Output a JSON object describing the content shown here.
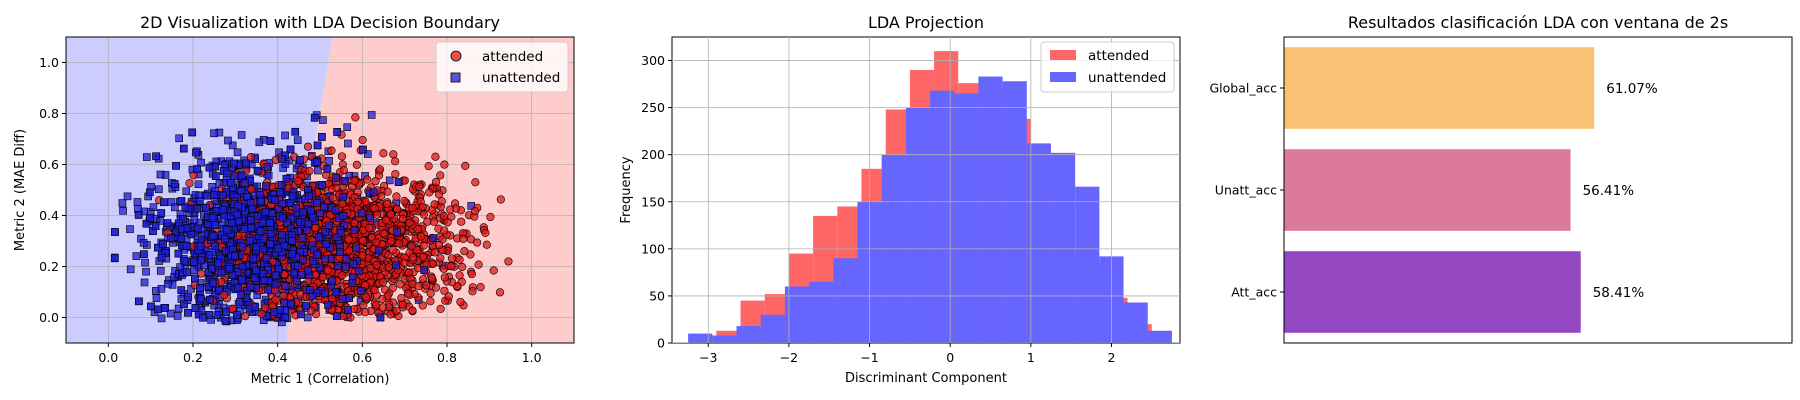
{
  "chart_data": [
    {
      "type": "scatter",
      "title": "2D Visualization with LDA Decision Boundary",
      "xlabel": "Metric 1 (Correlation)",
      "ylabel": "Metric 2 (MAE Diff)",
      "xlim": [
        -0.1,
        1.1
      ],
      "ylim": [
        -0.1,
        1.1
      ],
      "xticks": [
        "0.0",
        "0.2",
        "0.4",
        "0.6",
        "0.8",
        "1.0"
      ],
      "yticks": [
        "0.0",
        "0.2",
        "0.4",
        "0.6",
        "0.8",
        "1.0"
      ],
      "grid": true,
      "legend_position": "top-right",
      "decision_boundary": [
        [
          0.42,
          -0.1
        ],
        [
          0.48,
          0.6
        ],
        [
          0.53,
          1.1
        ]
      ],
      "regions": [
        {
          "side": "left",
          "color": "#ccccff",
          "class": "unattended"
        },
        {
          "side": "right",
          "color": "#ffcccc",
          "class": "attended"
        }
      ],
      "series": [
        {
          "name": "attended",
          "marker": "circle",
          "color": "#e01818",
          "edgecolor": "#000000",
          "center": [
            0.56,
            0.27
          ],
          "spread": [
            0.14,
            0.16
          ],
          "x_range": [
            0.08,
            1.0
          ],
          "y_range": [
            0.0,
            0.98
          ],
          "count": 1400
        },
        {
          "name": "unattended",
          "marker": "square",
          "color": "#1f1fd6",
          "edgecolor": "#000000",
          "center": [
            0.36,
            0.3
          ],
          "spread": [
            0.13,
            0.17
          ],
          "x_range": [
            0.0,
            1.0
          ],
          "y_range": [
            -0.02,
            0.88
          ],
          "count": 1400
        }
      ],
      "cluster_outline": [
        [
          0.0,
          0.3
        ],
        [
          0.05,
          0.06
        ],
        [
          0.1,
          0.0
        ],
        [
          0.2,
          -0.02
        ],
        [
          0.4,
          -0.02
        ],
        [
          0.7,
          0.0
        ],
        [
          0.85,
          0.03
        ],
        [
          0.95,
          0.12
        ],
        [
          1.0,
          0.3
        ],
        [
          0.93,
          0.55
        ],
        [
          0.8,
          0.75
        ],
        [
          0.6,
          0.88
        ],
        [
          0.5,
          0.88
        ],
        [
          0.35,
          0.87
        ],
        [
          0.25,
          0.84
        ],
        [
          0.15,
          0.75
        ],
        [
          0.06,
          0.62
        ],
        [
          0.02,
          0.45
        ]
      ]
    },
    {
      "type": "histogram",
      "title": "LDA Projection",
      "xlabel": "Discriminant Component",
      "ylabel": "Frequency",
      "xlim": [
        -3.45,
        2.85
      ],
      "ylim": [
        0,
        325
      ],
      "xticks": [
        "-3",
        "-2",
        "-1",
        "0",
        "1",
        "2"
      ],
      "yticks": [
        "0",
        "50",
        "100",
        "150",
        "200",
        "250",
        "300"
      ],
      "grid": true,
      "legend_position": "top-right",
      "series": [
        {
          "name": "attended",
          "color": "#ff6666",
          "bins": [
            -3.2,
            -2.9,
            -2.6,
            -2.3,
            -2.0,
            -1.7,
            -1.4,
            -1.1,
            -0.8,
            -0.5,
            -0.2,
            0.1,
            0.4,
            0.7,
            1.0,
            1.3,
            1.6,
            1.9,
            2.2
          ],
          "values": [
            5,
            13,
            45,
            52,
            95,
            135,
            145,
            185,
            248,
            290,
            310,
            276,
            272,
            238,
            160,
            92,
            82,
            48,
            20
          ]
        },
        {
          "name": "unattended",
          "color": "#6666ff",
          "bins": [
            -3.25,
            -2.95,
            -2.65,
            -2.35,
            -2.05,
            -1.75,
            -1.45,
            -1.15,
            -0.85,
            -0.55,
            -0.25,
            0.05,
            0.35,
            0.65,
            0.95,
            1.25,
            1.55,
            1.85,
            2.15,
            2.45
          ],
          "values": [
            10,
            8,
            18,
            30,
            60,
            65,
            90,
            150,
            200,
            250,
            268,
            265,
            283,
            278,
            212,
            202,
            166,
            92,
            43,
            13
          ]
        }
      ]
    },
    {
      "type": "bar",
      "orientation": "horizontal",
      "title": "Resultados clasificación LDA con ventana de 2s",
      "categories": [
        "Att_acc",
        "Unatt_acc",
        "Global_acc"
      ],
      "values": [
        58.41,
        56.41,
        61.07
      ],
      "labels": [
        "58.41%",
        "56.41%",
        "61.07%"
      ],
      "colors": [
        "#9348c2",
        "#dc7a9e",
        "#f8c174"
      ],
      "xlim": [
        0,
        100
      ]
    }
  ]
}
